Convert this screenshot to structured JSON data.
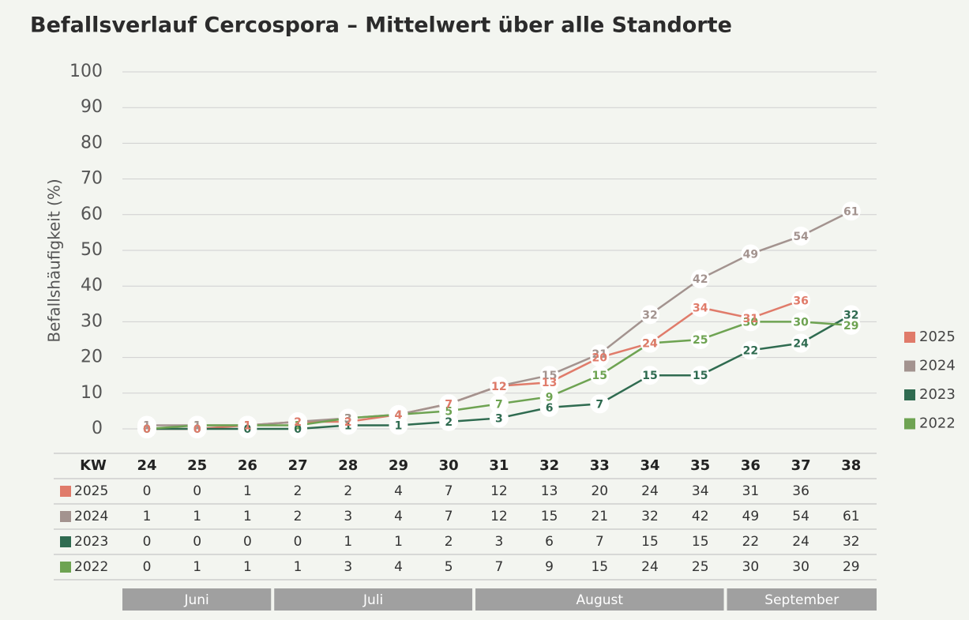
{
  "chart_data": {
    "type": "line",
    "title": "Befallsverlauf Cercospora – Mittelwert über alle Standorte",
    "y_label": "Befallshäufigkeit (%)",
    "x_label": "KW",
    "categories": [
      "24",
      "25",
      "26",
      "27",
      "28",
      "29",
      "30",
      "31",
      "32",
      "33",
      "34",
      "35",
      "36",
      "37",
      "38"
    ],
    "series": [
      {
        "name": "2025",
        "color": "#e07b6a",
        "values": [
          0,
          0,
          1,
          2,
          2,
          4,
          7,
          12,
          13,
          20,
          24,
          34,
          31,
          36,
          null
        ]
      },
      {
        "name": "2024",
        "color": "#a3938f",
        "values": [
          1,
          1,
          1,
          2,
          3,
          4,
          7,
          12,
          15,
          21,
          32,
          42,
          49,
          54,
          61
        ]
      },
      {
        "name": "2023",
        "color": "#2f6b50",
        "values": [
          0,
          0,
          0,
          0,
          1,
          1,
          2,
          3,
          6,
          7,
          15,
          15,
          22,
          24,
          32
        ]
      },
      {
        "name": "2022",
        "color": "#6ea352",
        "values": [
          0,
          1,
          1,
          1,
          3,
          4,
          5,
          7,
          9,
          15,
          24,
          25,
          30,
          30,
          29
        ]
      }
    ],
    "months": [
      {
        "name": "Juni",
        "first_week": "24",
        "last_week": "26"
      },
      {
        "name": "Juli",
        "first_week": "27",
        "last_week": "30"
      },
      {
        "name": "August",
        "first_week": "31",
        "last_week": "35"
      },
      {
        "name": "September",
        "first_week": "36",
        "last_week": "38"
      }
    ],
    "ylim": [
      0,
      100
    ],
    "yticks": [
      0,
      10,
      20,
      30,
      40,
      50,
      60,
      70,
      80,
      90,
      100
    ],
    "grid": true,
    "legend": "right"
  }
}
